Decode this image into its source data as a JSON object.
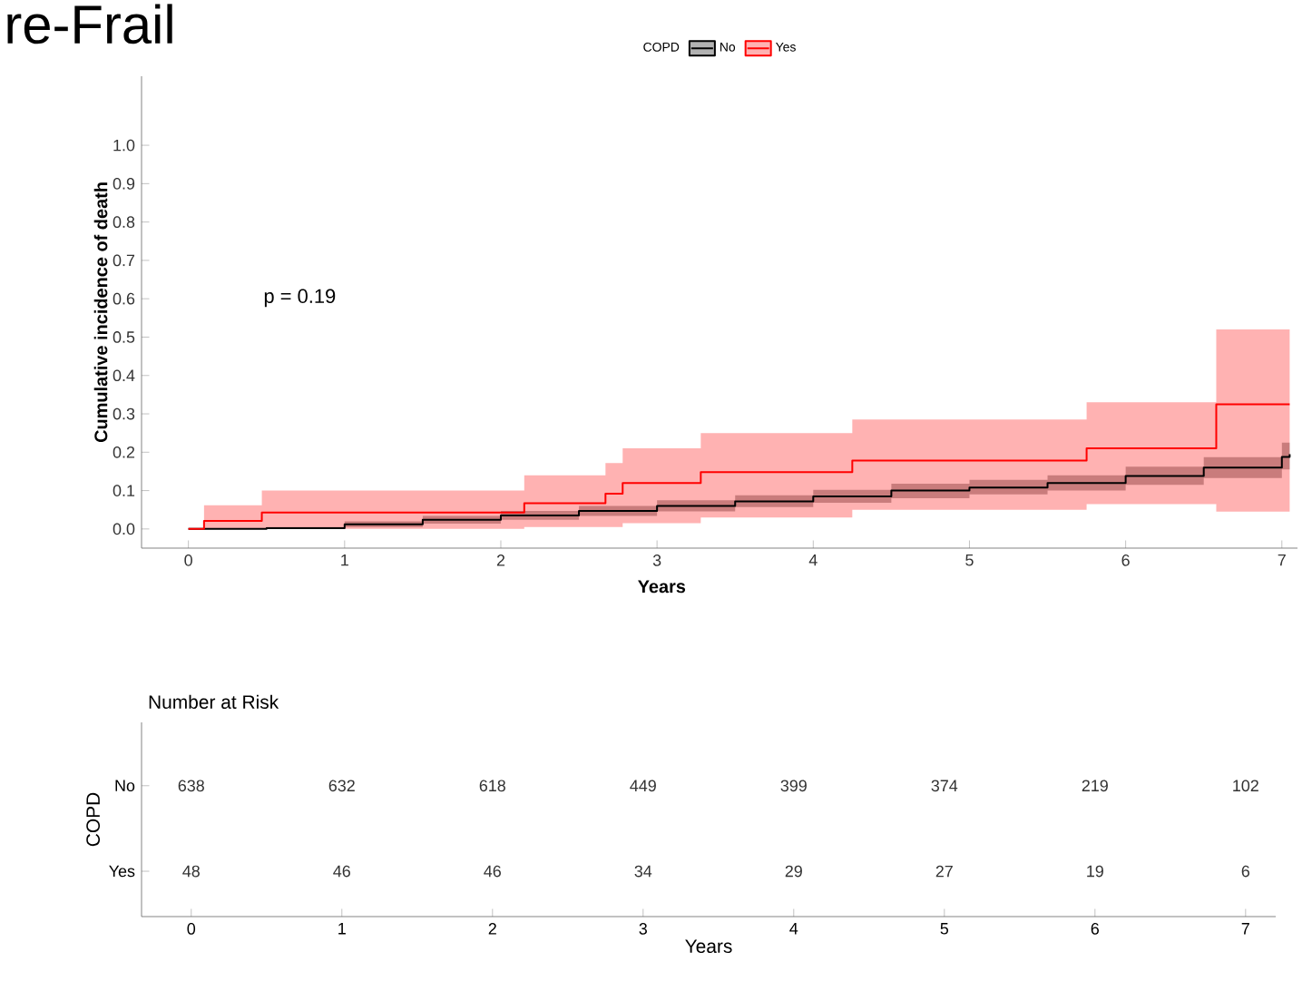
{
  "chart_data": [
    {
      "type": "step",
      "annotations": [
        "re-Frail",
        "p = 0.19"
      ],
      "xlabel": "Years",
      "ylabel": "Cumulative incidence of death",
      "legend_title": "COPD",
      "legend": "top",
      "xlim": [
        -0.3,
        7.1
      ],
      "ylim": [
        -0.05,
        1.18
      ],
      "xticks": [
        0,
        1,
        2,
        3,
        4,
        5,
        6,
        7
      ],
      "yticks": [
        {
          "value": 0,
          "label": "0.0"
        },
        {
          "value": 0.1,
          "label": "0.1"
        },
        {
          "value": 0.2,
          "label": "0.2"
        },
        {
          "value": 0.3,
          "label": "0.3"
        },
        {
          "value": 0.4,
          "label": "0.4"
        },
        {
          "value": 0.5,
          "label": "0.5"
        },
        {
          "value": 0.6,
          "label": "0.6"
        },
        {
          "value": 0.7,
          "label": "0.7"
        },
        {
          "value": 0.8,
          "label": "0.8"
        },
        {
          "value": 0.9,
          "label": "0.9"
        },
        {
          "value": 1,
          "label": "1.0"
        }
      ],
      "series": [
        {
          "name": "No",
          "color": "#000000",
          "x": [
            0,
            0.5,
            1,
            1.5,
            2,
            2.5,
            3,
            3.5,
            4,
            4.5,
            5,
            5.5,
            6,
            6.5,
            7,
            7.05
          ],
          "values": [
            0,
            0.002,
            0.012,
            0.024,
            0.035,
            0.047,
            0.06,
            0.072,
            0.085,
            0.1,
            0.108,
            0.12,
            0.138,
            0.16,
            0.188,
            0.195
          ],
          "lower": [
            0,
            0,
            0.005,
            0.014,
            0.024,
            0.034,
            0.046,
            0.057,
            0.068,
            0.08,
            0.09,
            0.1,
            0.115,
            0.133,
            0.155,
            0.16
          ],
          "upper": [
            0,
            0.005,
            0.02,
            0.034,
            0.047,
            0.06,
            0.075,
            0.088,
            0.102,
            0.118,
            0.128,
            0.14,
            0.162,
            0.187,
            0.225,
            0.235
          ]
        },
        {
          "name": "Yes",
          "color": "#ff0000",
          "x": [
            0,
            0.1,
            0.47,
            2.15,
            2.67,
            2.78,
            3.28,
            4.25,
            5.75,
            6.58,
            7.05
          ],
          "values": [
            0,
            0.021,
            0.043,
            0.067,
            0.092,
            0.12,
            0.148,
            0.178,
            0.21,
            0.325,
            0.325
          ],
          "lower": [
            0,
            0,
            0,
            0.005,
            0.005,
            0.015,
            0.03,
            0.05,
            0.065,
            0.045,
            0.045
          ],
          "upper": [
            0,
            0.062,
            0.1,
            0.14,
            0.172,
            0.21,
            0.25,
            0.285,
            0.33,
            0.52,
            0.52
          ]
        }
      ]
    },
    {
      "type": "heatmap",
      "title": "Number at Risk",
      "xlabel": "Years",
      "ylabel": "COPD",
      "categories": [
        "0",
        "1",
        "2",
        "3",
        "4",
        "5",
        "6",
        "7"
      ],
      "y_categories": [
        "No",
        "Yes"
      ],
      "data_labels": true,
      "cells": [
        [
          638,
          632,
          618,
          449,
          399,
          374,
          219,
          102
        ],
        [
          48,
          46,
          46,
          34,
          29,
          27,
          19,
          6
        ]
      ]
    }
  ]
}
